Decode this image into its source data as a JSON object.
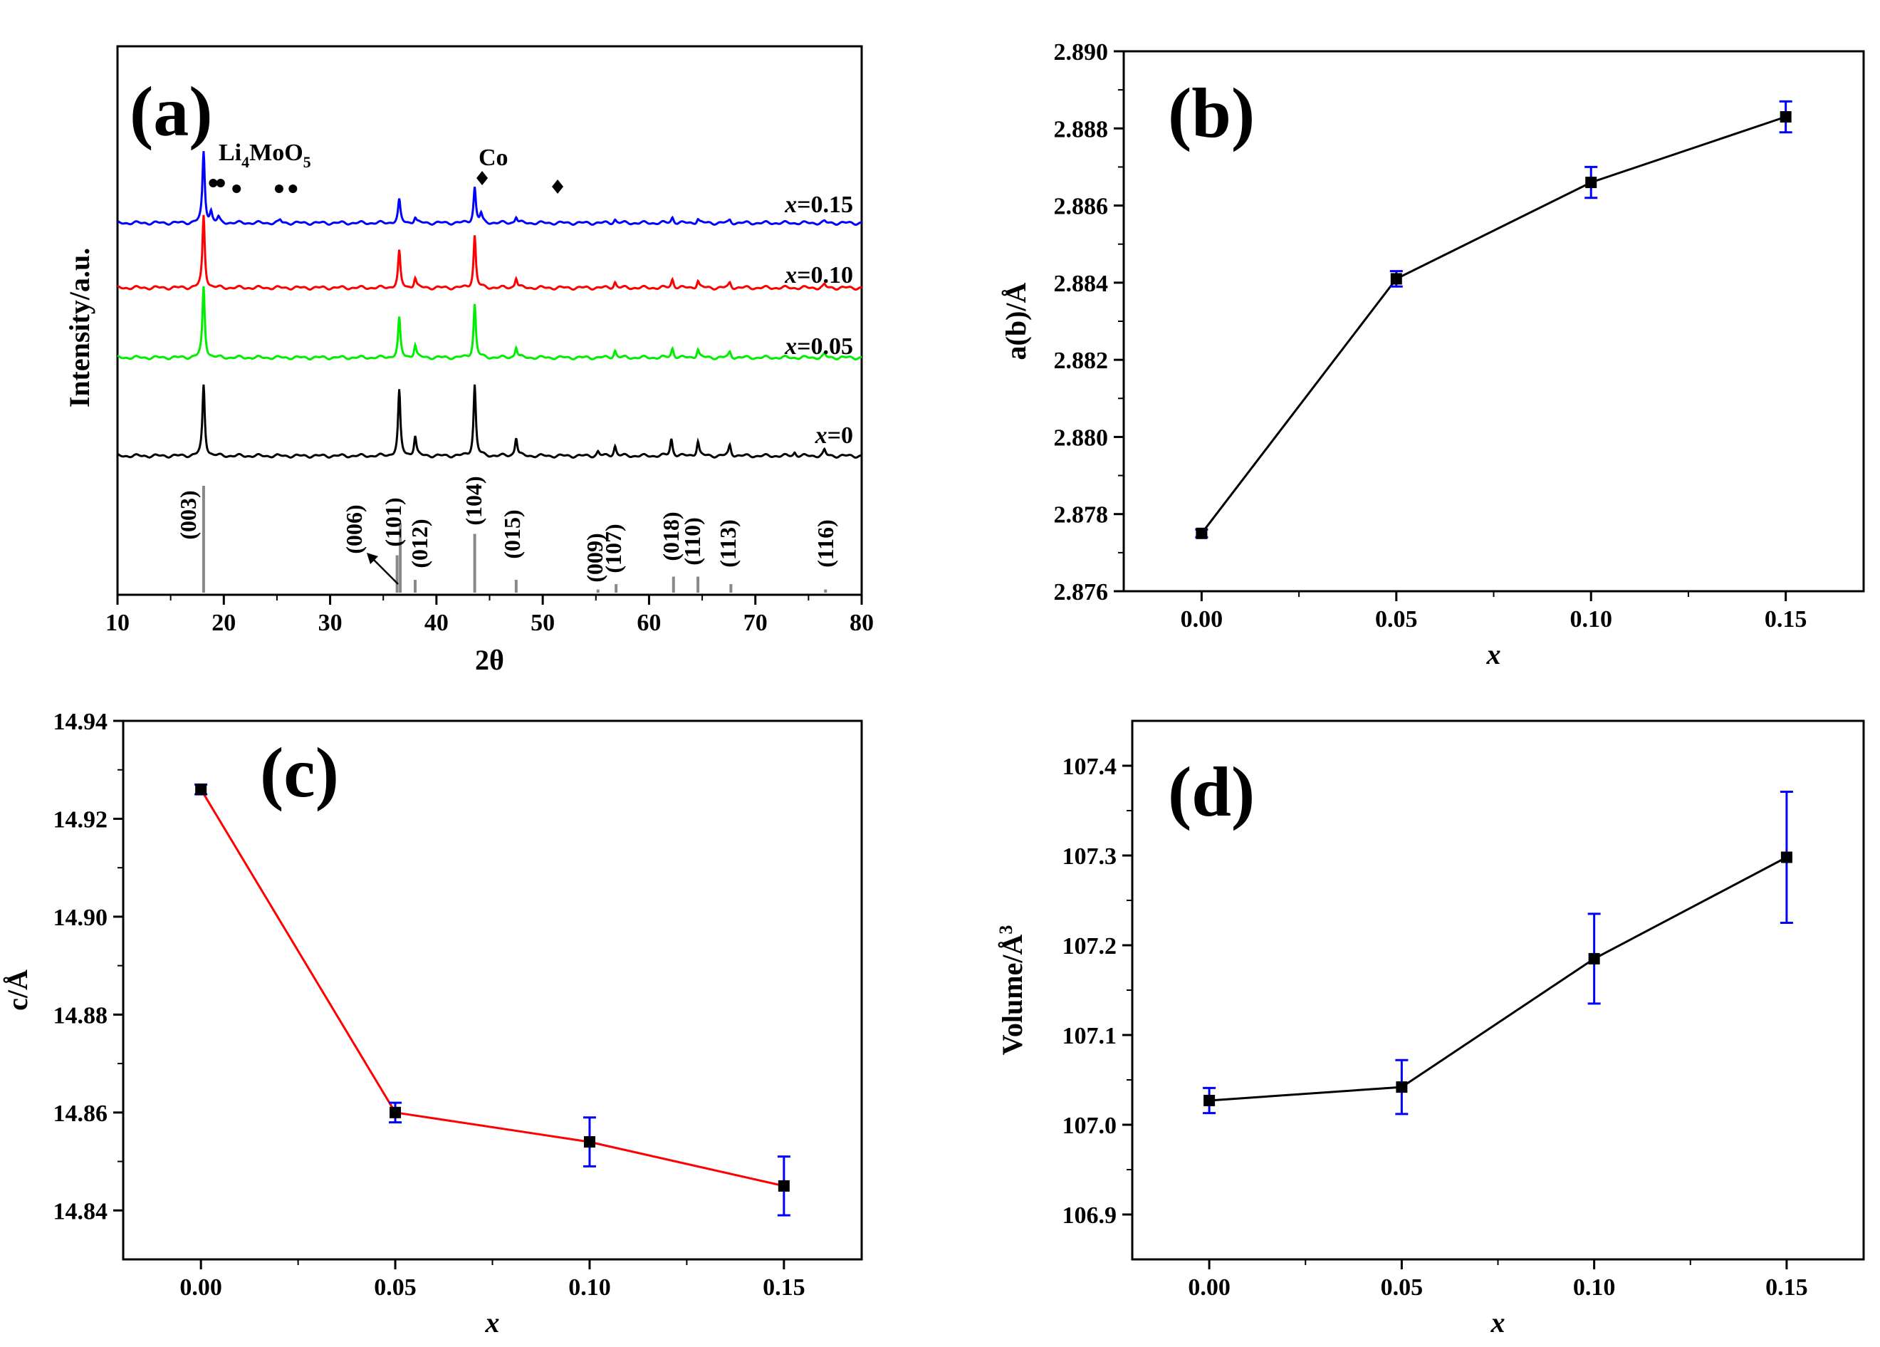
{
  "chart_data": [
    {
      "id": "a",
      "type": "line",
      "panel_label": "(a)",
      "xlabel": "2θ",
      "ylabel": "Intensity/a.u.",
      "xlim": [
        10,
        80
      ],
      "xticks": [
        "10",
        "20",
        "30",
        "40",
        "50",
        "60",
        "70",
        "80"
      ],
      "xtick_values": [
        10,
        20,
        30,
        40,
        50,
        60,
        70,
        80
      ],
      "series": [
        {
          "name": "x=0",
          "label_prefix": "x",
          "label_suffix": "=0",
          "color": "#000000",
          "baseline": 0,
          "peaks": [
            [
              18.1,
              1.0
            ],
            [
              36.5,
              0.91
            ],
            [
              38.0,
              0.28
            ],
            [
              43.6,
              1.0
            ],
            [
              47.5,
              0.26
            ],
            [
              55.2,
              0.06
            ],
            [
              56.8,
              0.14
            ],
            [
              62.1,
              0.24
            ],
            [
              64.6,
              0.21
            ],
            [
              67.6,
              0.15
            ],
            [
              73.7,
              0.05
            ],
            [
              76.5,
              0.08
            ]
          ]
        },
        {
          "name": "x=0.05",
          "label_prefix": "x",
          "label_suffix": "=0.05",
          "color": "#00ee00",
          "baseline": 1,
          "peaks": [
            [
              18.1,
              1.0
            ],
            [
              36.5,
              0.55
            ],
            [
              38.0,
              0.18
            ],
            [
              43.6,
              0.75
            ],
            [
              47.5,
              0.15
            ],
            [
              56.8,
              0.1
            ],
            [
              62.2,
              0.13
            ],
            [
              64.6,
              0.12
            ],
            [
              67.6,
              0.08
            ],
            [
              76.5,
              0.05
            ]
          ]
        },
        {
          "name": "x=0.10",
          "label_prefix": "x",
          "label_suffix": "=0.10",
          "color": "#ff0000",
          "baseline": 2,
          "peaks": [
            [
              18.1,
              1.0
            ],
            [
              36.5,
              0.5
            ],
            [
              38.0,
              0.14
            ],
            [
              43.6,
              0.72
            ],
            [
              47.5,
              0.14
            ],
            [
              56.8,
              0.08
            ],
            [
              62.2,
              0.12
            ],
            [
              64.6,
              0.1
            ],
            [
              67.6,
              0.07
            ],
            [
              76.5,
              0.04
            ]
          ]
        },
        {
          "name": "x=0.15",
          "label_prefix": "x",
          "label_suffix": "=0.15",
          "color": "#0000ff",
          "baseline": 3,
          "peaks": [
            [
              18.1,
              1.0
            ],
            [
              18.8,
              0.15
            ],
            [
              19.5,
              0.07
            ],
            [
              25.3,
              0.04
            ],
            [
              36.5,
              0.32
            ],
            [
              38.0,
              0.08
            ],
            [
              43.6,
              0.5
            ],
            [
              44.2,
              0.12
            ],
            [
              47.5,
              0.09
            ],
            [
              56.8,
              0.05
            ],
            [
              62.2,
              0.08
            ],
            [
              64.6,
              0.06
            ],
            [
              67.6,
              0.04
            ],
            [
              76.5,
              0.02
            ]
          ]
        }
      ],
      "reference_lines": [
        {
          "hkl": "(003)",
          "two_theta": 18.1,
          "intensity": 1.0
        },
        {
          "hkl": "(006)",
          "two_theta": 36.3,
          "intensity": 0.35
        },
        {
          "hkl": "(101)",
          "two_theta": 36.6,
          "intensity": 0.65
        },
        {
          "hkl": "(012)",
          "two_theta": 38.0,
          "intensity": 0.12
        },
        {
          "hkl": "(104)",
          "two_theta": 43.6,
          "intensity": 0.55
        },
        {
          "hkl": "(015)",
          "two_theta": 47.5,
          "intensity": 0.12
        },
        {
          "hkl": "(009)",
          "two_theta": 55.2,
          "intensity": 0.03
        },
        {
          "hkl": "(107)",
          "two_theta": 56.9,
          "intensity": 0.08
        },
        {
          "hkl": "(018)",
          "two_theta": 62.3,
          "intensity": 0.15
        },
        {
          "hkl": "(110)",
          "two_theta": 64.6,
          "intensity": 0.15
        },
        {
          "hkl": "(113)",
          "two_theta": 67.7,
          "intensity": 0.08
        },
        {
          "hkl": "(116)",
          "two_theta": 76.6,
          "intensity": 0.03
        }
      ],
      "annotations": {
        "li_label_main": "Li",
        "li_sub1": "4",
        "li_mid": "MoO",
        "li_sub2": "5",
        "co_label": "Co",
        "li_marker_2theta": [
          19.0,
          19.7,
          21.2,
          25.2,
          26.5
        ],
        "co_marker_2theta": [
          44.3,
          51.4
        ]
      }
    },
    {
      "id": "b",
      "type": "line",
      "panel_label": "(b)",
      "xlabel": "x",
      "ylabel": "a(b)/Å",
      "xlim": [
        -0.02,
        0.17
      ],
      "ylim": [
        2.876,
        2.89
      ],
      "xticks": [
        "0.00",
        "0.05",
        "0.10",
        "0.15"
      ],
      "xtick_values": [
        0,
        0.05,
        0.1,
        0.15
      ],
      "yticks": [
        "2.876",
        "2.878",
        "2.880",
        "2.882",
        "2.884",
        "2.886",
        "2.888",
        "2.890"
      ],
      "ytick_values": [
        2.876,
        2.878,
        2.88,
        2.882,
        2.884,
        2.886,
        2.888,
        2.89
      ],
      "line_color": "#000000",
      "error_color": "#0000ff",
      "x": [
        0,
        0.05,
        0.1,
        0.15
      ],
      "y": [
        2.8775,
        2.8841,
        2.8866,
        2.8883
      ],
      "yerr": [
        0.0001,
        0.0002,
        0.0004,
        0.0004
      ]
    },
    {
      "id": "c",
      "type": "line",
      "panel_label": "(c)",
      "xlabel": "x",
      "ylabel": "c/Å",
      "xlim": [
        -0.02,
        0.17
      ],
      "ylim": [
        14.83,
        14.94
      ],
      "xticks": [
        "0.00",
        "0.05",
        "0.10",
        "0.15"
      ],
      "xtick_values": [
        0,
        0.05,
        0.1,
        0.15
      ],
      "yticks": [
        "14.84",
        "14.86",
        "14.88",
        "14.90",
        "14.92",
        "14.94"
      ],
      "ytick_values": [
        14.84,
        14.86,
        14.88,
        14.9,
        14.92,
        14.94
      ],
      "line_color": "#ff0000",
      "error_color": "#0000ff",
      "x": [
        0,
        0.05,
        0.1,
        0.15
      ],
      "y": [
        14.926,
        14.86,
        14.854,
        14.845
      ],
      "yerr": [
        0.001,
        0.002,
        0.005,
        0.006
      ]
    },
    {
      "id": "d",
      "type": "line",
      "panel_label": "(d)",
      "xlabel": "x",
      "ylabel_main": "Volume/Å",
      "ylabel_sup": "3",
      "xlim": [
        -0.02,
        0.17
      ],
      "ylim": [
        106.85,
        107.45
      ],
      "xticks": [
        "0.00",
        "0.05",
        "0.10",
        "0.15"
      ],
      "xtick_values": [
        0,
        0.05,
        0.1,
        0.15
      ],
      "yticks": [
        "106.9",
        "107.0",
        "107.1",
        "107.2",
        "107.3",
        "107.4"
      ],
      "ytick_values": [
        106.9,
        107.0,
        107.1,
        107.2,
        107.3,
        107.4
      ],
      "line_color": "#000000",
      "error_color": "#0000ff",
      "x": [
        0,
        0.05,
        0.1,
        0.15
      ],
      "y": [
        107.027,
        107.042,
        107.185,
        107.298
      ],
      "yerr": [
        0.014,
        0.03,
        0.05,
        0.073
      ]
    }
  ]
}
